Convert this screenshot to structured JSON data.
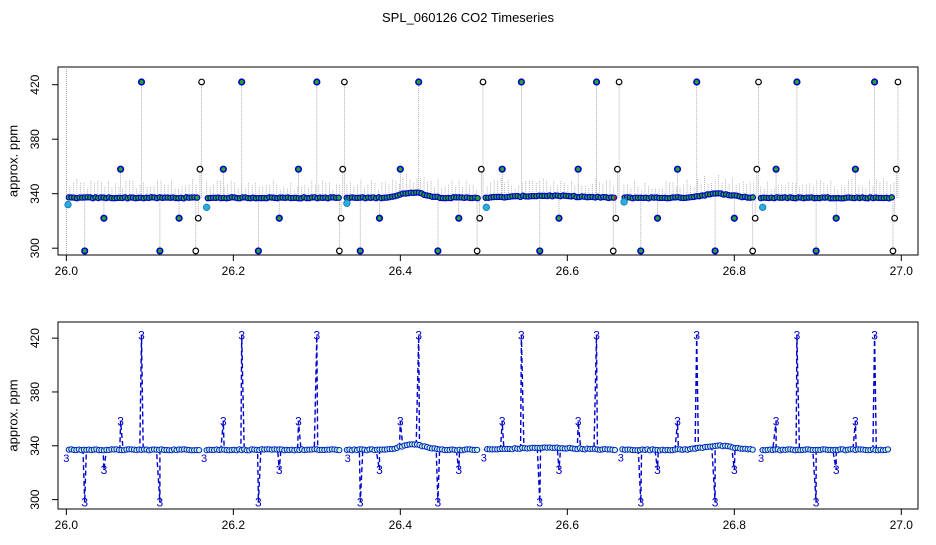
{
  "chart_data": {
    "title": "SPL_060126  CO2 Timeseries",
    "type": "scatter",
    "panels": [
      {
        "id": "top",
        "ylabel": "approx. ppm",
        "xlabel": "",
        "xlim": [
          25.99,
          27.02
        ],
        "ylim": [
          295,
          433
        ],
        "xticks": [
          26.0,
          26.2,
          26.4,
          26.6,
          26.8,
          27.0
        ],
        "xtick_labels": [
          "26.0",
          "26.2",
          "26.4",
          "26.6",
          "26.8",
          "27.0"
        ],
        "yticks": [
          300,
          340,
          380,
          420
        ],
        "ytick_labels": [
          "300",
          "340",
          "380",
          "420"
        ],
        "colors": {
          "main": "#0000cc",
          "raw": "#000000",
          "fill": "#22aa22",
          "accent": "#ff0000",
          "flag": "#33aadd",
          "line": "#999999"
        },
        "series": [
          {
            "name": "blue outliers",
            "x": [
              26.022,
              26.045,
              26.065,
              26.09,
              26.112,
              26.135,
              26.188,
              26.21,
              26.23,
              26.255,
              26.278,
              26.3,
              26.352,
              26.375,
              26.4,
              26.422,
              26.445,
              26.47,
              26.522,
              26.545,
              26.567,
              26.59,
              26.613,
              26.635,
              26.688,
              26.708,
              26.732,
              26.755,
              26.777,
              26.8,
              26.85,
              26.875,
              26.898,
              26.922,
              26.945,
              26.968
            ],
            "y": [
              298,
              322,
              358,
              422,
              298,
              322,
              358,
              422,
              298,
              322,
              358,
              422,
              298,
              322,
              358,
              422,
              298,
              322,
              358,
              422,
              298,
              322,
              358,
              422,
              298,
              322,
              358,
              422,
              298,
              322,
              358,
              422,
              298,
              322,
              358,
              422
            ]
          },
          {
            "name": "black raw",
            "x": [
              26.155,
              26.158,
              26.16,
              26.162,
              26.327,
              26.329,
              26.331,
              26.333,
              26.492,
              26.495,
              26.497,
              26.499,
              26.655,
              26.658,
              26.66,
              26.662,
              26.822,
              26.825,
              26.827,
              26.829,
              26.99,
              26.992,
              26.994,
              26.996
            ],
            "y": [
              298,
              322,
              358,
              422,
              298,
              322,
              358,
              422,
              298,
              322,
              358,
              422,
              298,
              322,
              358,
              422,
              298,
              322,
              358,
              422,
              298,
              322,
              358,
              422
            ]
          },
          {
            "name": "cyan flagged",
            "x": [
              26.002,
              26.168,
              26.336,
              26.503,
              26.668,
              26.834
            ],
            "y": [
              332,
              330,
              333,
              330,
              334,
              330
            ]
          }
        ]
      },
      {
        "id": "bottom",
        "ylabel": "approx. ppm",
        "xlabel": "",
        "xlim": [
          25.99,
          27.02
        ],
        "ylim": [
          293,
          432
        ],
        "xticks": [
          26.0,
          26.2,
          26.4,
          26.6,
          26.8,
          27.0
        ],
        "xtick_labels": [
          "26.0",
          "26.2",
          "26.4",
          "26.6",
          "26.8",
          "27.0"
        ],
        "yticks": [
          300,
          340,
          380,
          420
        ],
        "ytick_labels": [
          "300",
          "340",
          "380",
          "420"
        ],
        "point_label": "3",
        "series": [
          {
            "name": "labeled outliers",
            "x": [
              26.022,
              26.045,
              26.065,
              26.09,
              26.112,
              26.188,
              26.21,
              26.23,
              26.255,
              26.278,
              26.3,
              26.352,
              26.375,
              26.4,
              26.422,
              26.445,
              26.47,
              26.522,
              26.545,
              26.567,
              26.59,
              26.613,
              26.635,
              26.688,
              26.708,
              26.732,
              26.755,
              26.777,
              26.8,
              26.85,
              26.875,
              26.898,
              26.922,
              26.945,
              26.968
            ],
            "y": [
              298,
              322,
              358,
              422,
              298,
              358,
              422,
              298,
              322,
              358,
              422,
              298,
              322,
              358,
              422,
              298,
              322,
              358,
              422,
              298,
              322,
              358,
              422,
              298,
              322,
              358,
              422,
              298,
              322,
              358,
              422,
              298,
              322,
              358,
              422
            ]
          }
        ]
      }
    ]
  }
}
